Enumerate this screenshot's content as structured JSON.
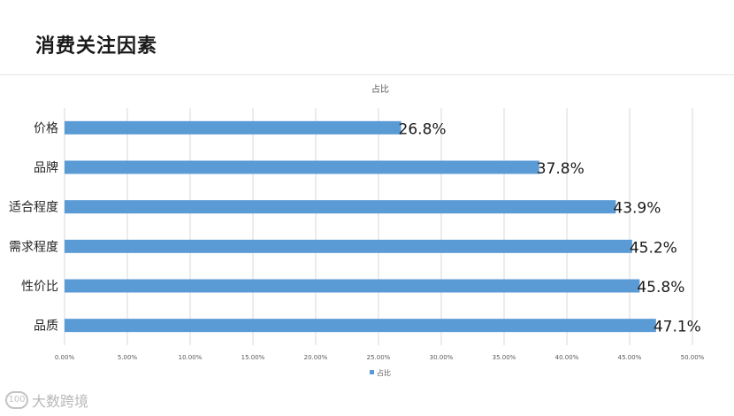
{
  "page": {
    "title": "消费关注因素",
    "watermark_text": "大数跨境",
    "watermark_logo": "100"
  },
  "chart_data": {
    "type": "bar",
    "orientation": "horizontal",
    "title": "占比",
    "categories": [
      "价格",
      "品牌",
      "适合程度",
      "需求程度",
      "性价比",
      "品质"
    ],
    "series": [
      {
        "name": "占比",
        "values": [
          26.8,
          37.8,
          43.9,
          45.2,
          45.8,
          47.1
        ],
        "data_labels": [
          "26.8%",
          "37.8%",
          "43.9%",
          "45.2%",
          "45.8%",
          "47.1%"
        ]
      }
    ],
    "xlim": [
      0,
      50
    ],
    "x_ticks": [
      0,
      5,
      10,
      15,
      20,
      25,
      30,
      35,
      40,
      45,
      50
    ],
    "x_tick_labels": [
      "0.00%",
      "5.00%",
      "10.00%",
      "15.00%",
      "20.00%",
      "25.00%",
      "30.00%",
      "35.00%",
      "40.00%",
      "45.00%",
      "50.00%"
    ],
    "grid": true,
    "legend": "bottom",
    "bar_color": "#5b9bd5"
  }
}
